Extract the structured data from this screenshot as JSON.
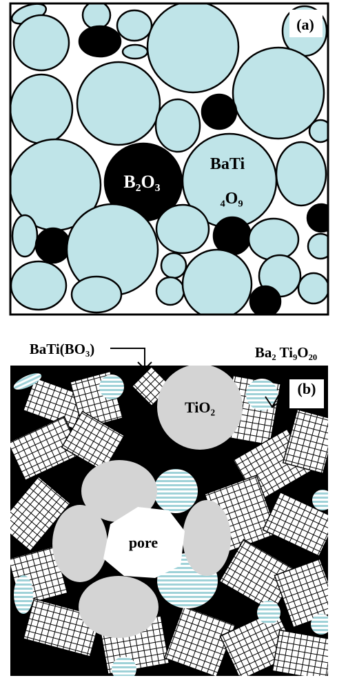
{
  "panel_a": {
    "label": "(a)",
    "b2o3": "B₂O₃",
    "bati_top": "BaTi",
    "bati_bottom": "₄O₉"
  },
  "panel_b": {
    "label": "(b)",
    "bati_bo3": "BaTi(BO₃)",
    "ba2ti9o20": "Ba₂ Ti₉O₂₀",
    "tio2": "TiO₂",
    "pore": "pore"
  }
}
